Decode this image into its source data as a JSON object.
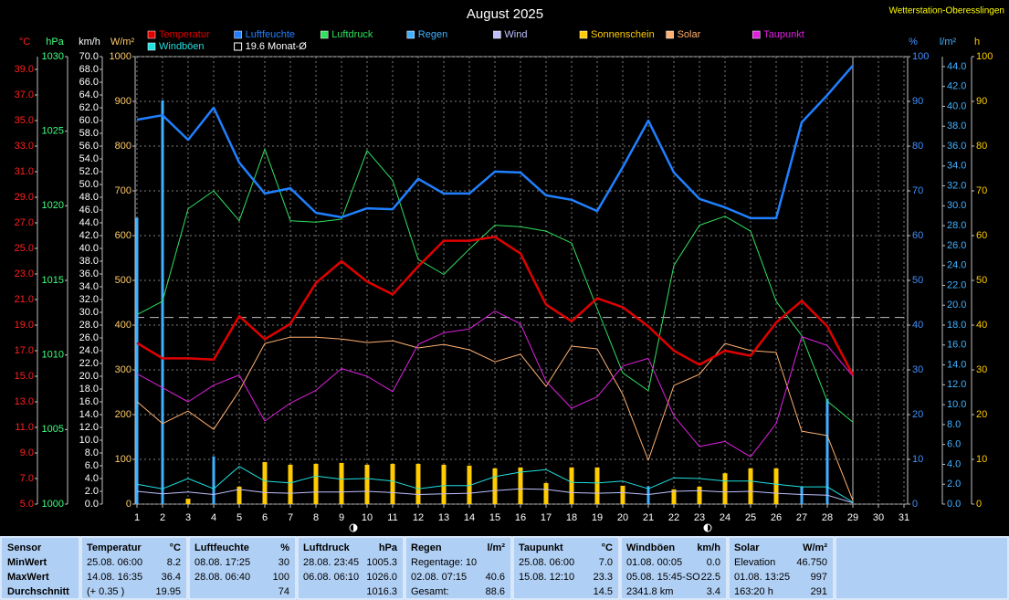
{
  "chart_data": {
    "type": "line",
    "title": "August 2025",
    "station": "Wetterstation-Oberesslingen",
    "xlim": [
      1,
      31
    ],
    "xticks": [
      1,
      2,
      3,
      4,
      5,
      6,
      7,
      8,
      9,
      10,
      11,
      12,
      13,
      14,
      15,
      16,
      17,
      18,
      19,
      20,
      21,
      22,
      23,
      24,
      25,
      26,
      27,
      28,
      29,
      30,
      31
    ],
    "x": [
      1,
      2,
      3,
      4,
      5,
      6,
      7,
      8,
      9,
      10,
      11,
      12,
      13,
      14,
      15,
      16,
      17,
      18,
      19,
      20,
      21,
      22,
      23,
      24,
      25,
      26,
      27,
      28,
      29
    ],
    "grid": true,
    "axes": [
      {
        "unit": "°C",
        "color": "#ff2020",
        "ylim": [
          5,
          40
        ],
        "yticks": [
          {
            "value": 5,
            "label": "5.0"
          },
          {
            "value": 7,
            "label": "7.0"
          },
          {
            "value": 9,
            "label": "9.0"
          },
          {
            "value": 11,
            "label": "11.0"
          },
          {
            "value": 13,
            "label": "13.0"
          },
          {
            "value": 15,
            "label": "15.0"
          },
          {
            "value": 17,
            "label": "17.0"
          },
          {
            "value": 19,
            "label": "19.0"
          },
          {
            "value": 21,
            "label": "21.0"
          },
          {
            "value": 23,
            "label": "23.0"
          },
          {
            "value": 25,
            "label": "25.0"
          },
          {
            "value": 27,
            "label": "27.0"
          },
          {
            "value": 29,
            "label": "29.0"
          },
          {
            "value": 31,
            "label": "31.0"
          },
          {
            "value": 33,
            "label": "33.0"
          },
          {
            "value": 35,
            "label": "35.0"
          },
          {
            "value": 37,
            "label": "37.0"
          },
          {
            "value": 39,
            "label": "39.0"
          }
        ]
      },
      {
        "unit": "hPa",
        "color": "#40ff80",
        "ylim": [
          1000,
          1030
        ],
        "yticks": [
          1000,
          1005,
          1010,
          1015,
          1020,
          1025,
          1030
        ]
      },
      {
        "unit": "km/h",
        "color": "#ffffff",
        "ylim": [
          0,
          70
        ],
        "yticks": [
          {
            "value": 0,
            "label": "0.0"
          },
          {
            "value": 2,
            "label": "2.0"
          },
          {
            "value": 4,
            "label": "4.0"
          },
          {
            "value": 6,
            "label": "6.0"
          },
          {
            "value": 8,
            "label": "8.0"
          },
          {
            "value": 10,
            "label": "10.0"
          },
          {
            "value": 12,
            "label": "12.0"
          },
          {
            "value": 14,
            "label": "14.0"
          },
          {
            "value": 16,
            "label": "16.0"
          },
          {
            "value": 18,
            "label": "18.0"
          },
          {
            "value": 20,
            "label": "20.0"
          },
          {
            "value": 22,
            "label": "22.0"
          },
          {
            "value": 24,
            "label": "24.0"
          },
          {
            "value": 26,
            "label": "26.0"
          },
          {
            "value": 28,
            "label": "28.0"
          },
          {
            "value": 30,
            "label": "30.0"
          },
          {
            "value": 32,
            "label": "32.0"
          },
          {
            "value": 34,
            "label": "34.0"
          },
          {
            "value": 36,
            "label": "36.0"
          },
          {
            "value": 38,
            "label": "38.0"
          },
          {
            "value": 40,
            "label": "40.0"
          },
          {
            "value": 42,
            "label": "42.0"
          },
          {
            "value": 44,
            "label": "44.0"
          },
          {
            "value": 46,
            "label": "46.0"
          },
          {
            "value": 48,
            "label": "48.0"
          },
          {
            "value": 50,
            "label": "50.0"
          },
          {
            "value": 52,
            "label": "52.0"
          },
          {
            "value": 54,
            "label": "54.0"
          },
          {
            "value": 56,
            "label": "56.0"
          },
          {
            "value": 58,
            "label": "58.0"
          },
          {
            "value": 60,
            "label": "60.0"
          },
          {
            "value": 62,
            "label": "62.0"
          },
          {
            "value": 64,
            "label": "64.0"
          },
          {
            "value": 66,
            "label": "66.0"
          },
          {
            "value": 68,
            "label": "68.0"
          },
          {
            "value": 70,
            "label": "70.0"
          }
        ]
      },
      {
        "unit": "W/m²",
        "color": "#ffcc66",
        "ylim": [
          0,
          1000
        ],
        "yticks": [
          0,
          100,
          200,
          300,
          400,
          500,
          600,
          700,
          800,
          900,
          1000
        ]
      },
      {
        "unit": "%",
        "color": "#4090ff",
        "ylim": [
          0,
          100
        ],
        "yticks": [
          0,
          10,
          20,
          30,
          40,
          50,
          60,
          70,
          80,
          90,
          100
        ]
      },
      {
        "unit": "l/m²",
        "color": "#40b0ff",
        "ylim": [
          0,
          45
        ],
        "yticks": [
          {
            "value": 0,
            "label": "0.0"
          },
          {
            "value": 2,
            "label": "2.0"
          },
          {
            "value": 4,
            "label": "4.0"
          },
          {
            "value": 6,
            "label": "6.0"
          },
          {
            "value": 8,
            "label": "8.0"
          },
          {
            "value": 10,
            "label": "10.0"
          },
          {
            "value": 12,
            "label": "12.0"
          },
          {
            "value": 14,
            "label": "14.0"
          },
          {
            "value": 16,
            "label": "16.0"
          },
          {
            "value": 18,
            "label": "18.0"
          },
          {
            "value": 20,
            "label": "20.0"
          },
          {
            "value": 22,
            "label": "22.0"
          },
          {
            "value": 24,
            "label": "24.0"
          },
          {
            "value": 26,
            "label": "26.0"
          },
          {
            "value": 28,
            "label": "28.0"
          },
          {
            "value": 30,
            "label": "30.0"
          },
          {
            "value": 32,
            "label": "32.0"
          },
          {
            "value": 34,
            "label": "34.0"
          },
          {
            "value": 36,
            "label": "36.0"
          },
          {
            "value": 38,
            "label": "38.0"
          },
          {
            "value": 40,
            "label": "40.0"
          },
          {
            "value": 42,
            "label": "42.0"
          },
          {
            "value": 44,
            "label": "44.0"
          }
        ]
      },
      {
        "unit": "h",
        "color": "#ffcc00",
        "ylim": [
          0,
          100
        ],
        "yticks": [
          0,
          10,
          20,
          30,
          40,
          50,
          60,
          70,
          80,
          90,
          100
        ]
      }
    ],
    "series": [
      {
        "name": "Temperatur",
        "color": "#e00000",
        "type": "line",
        "axis": 0,
        "line_width": 2.5,
        "values": [
          17.6,
          16.4,
          16.4,
          16.3,
          19.7,
          17.9,
          19.1,
          22.3,
          24.0,
          22.4,
          21.4,
          23.6,
          25.6,
          25.6,
          25.9,
          24.6,
          20.6,
          19.3,
          21.1,
          20.4,
          18.9,
          17.0,
          15.9,
          17.0,
          16.6,
          19.2,
          20.9,
          18.9,
          15.1
        ]
      },
      {
        "name": "Luftfeuchte",
        "color": "#2080ff",
        "type": "line",
        "axis": 4,
        "line_width": 2.5,
        "values": [
          85.9,
          86.9,
          81.4,
          88.6,
          76.3,
          69.4,
          70.6,
          65.1,
          64.1,
          66.1,
          65.9,
          72.7,
          69.4,
          69.4,
          74.3,
          74.1,
          69.0,
          68.0,
          65.5,
          75.3,
          85.7,
          74.1,
          68.2,
          66.3,
          63.9,
          63.9,
          85.3,
          91.4,
          98.0
        ]
      },
      {
        "name": "Luftdruck",
        "color": "#30e060",
        "type": "line",
        "axis": 1,
        "line_width": 1,
        "values": [
          1012.7,
          1013.6,
          1019.8,
          1021.0,
          1019.0,
          1023.8,
          1019.0,
          1018.9,
          1019.1,
          1023.7,
          1021.7,
          1016.4,
          1015.4,
          1017.1,
          1018.7,
          1018.6,
          1018.3,
          1017.5,
          1013.1,
          1008.8,
          1007.6,
          1016.0,
          1018.7,
          1019.3,
          1018.3,
          1013.6,
          1011.3,
          1006.9,
          1005.5
        ]
      },
      {
        "name": "Regen",
        "color": "#40b0ff",
        "type": "bar",
        "axis": 5,
        "line_width": 3,
        "values": [
          28.8,
          40.6,
          0,
          4.8,
          0,
          0,
          0,
          0,
          0,
          0,
          0,
          0,
          0,
          0,
          0,
          0,
          0,
          0,
          0,
          0,
          1.8,
          0,
          0,
          0,
          0,
          0,
          1.7,
          10.6,
          0
        ]
      },
      {
        "name": "Wind",
        "color": "#c0c0ff",
        "type": "line",
        "axis": 2,
        "line_width": 1,
        "values": [
          2.0,
          1.6,
          1.9,
          1.5,
          2.3,
          1.8,
          1.7,
          1.9,
          1.9,
          2.0,
          1.8,
          1.5,
          1.6,
          1.7,
          2.1,
          2.4,
          2.3,
          1.8,
          1.7,
          1.8,
          1.5,
          2.0,
          2.1,
          1.9,
          2.0,
          1.7,
          1.5,
          1.4,
          0.2
        ]
      },
      {
        "name": "Sonnenschein",
        "color": "#ffcc00",
        "type": "bar",
        "axis": 6,
        "line_width": 5,
        "values": [
          0,
          0,
          1.2,
          0,
          3.9,
          9.4,
          8.8,
          9.0,
          9.2,
          8.8,
          9.0,
          9.0,
          8.8,
          8.6,
          8.0,
          8.2,
          4.7,
          8.2,
          8.2,
          4.1,
          0,
          3.3,
          3.9,
          6.9,
          8.0,
          8.0,
          0,
          0,
          0
        ]
      },
      {
        "name": "Solar",
        "color": "#ffb070",
        "type": "line",
        "axis": 3,
        "line_width": 1,
        "values": [
          229,
          180,
          208,
          167,
          253,
          359,
          373,
          373,
          369,
          361,
          365,
          349,
          357,
          345,
          318,
          335,
          263,
          353,
          347,
          245,
          98,
          265,
          290,
          359,
          343,
          339,
          163,
          153,
          8
        ]
      },
      {
        "name": "Taupunkt",
        "color": "#e020e0",
        "type": "line",
        "axis": 0,
        "line_width": 1,
        "values": [
          15.2,
          14.1,
          13.0,
          14.3,
          15.1,
          11.5,
          12.9,
          13.9,
          15.6,
          15.0,
          13.8,
          17.5,
          18.4,
          18.7,
          20.1,
          19.1,
          14.6,
          12.5,
          13.4,
          15.8,
          16.4,
          11.9,
          9.5,
          9.9,
          8.7,
          11.3,
          18.1,
          17.4,
          15.0
        ]
      },
      {
        "name": "Windböen",
        "color": "#20e0e0",
        "type": "line",
        "axis": 2,
        "line_width": 1,
        "values": [
          3.1,
          2.4,
          4.0,
          2.4,
          5.9,
          3.6,
          3.3,
          4.4,
          3.9,
          4.0,
          3.6,
          2.4,
          2.9,
          2.9,
          4.3,
          5.0,
          5.4,
          3.4,
          3.3,
          3.6,
          2.4,
          4.1,
          4.0,
          3.6,
          3.6,
          3.1,
          2.7,
          2.7,
          0.3
        ]
      }
    ],
    "average": {
      "value": 19.6,
      "label": "19.6 Monat-Ø",
      "axis": 0
    },
    "summary": {
      "row_labels": [
        "Sensor",
        "MinWert",
        "MaxWert",
        "Durchschnitt"
      ],
      "columns": [
        {
          "name": "Temperatur",
          "unit": "°C",
          "rows": [
            {
              "l": "25.08. 06:00",
              "r": "8.2"
            },
            {
              "l": "14.08. 16:35",
              "r": "36.4"
            },
            {
              "l": "(+ 0.35 )",
              "r": "19.95"
            }
          ]
        },
        {
          "name": "Luftfeuchte",
          "unit": "%",
          "rows": [
            {
              "l": "08.08. 17:25",
              "r": "30"
            },
            {
              "l": "28.08. 06:40",
              "r": "100"
            },
            {
              "r": "74"
            }
          ]
        },
        {
          "name": "Luftdruck",
          "unit": "hPa",
          "rows": [
            {
              "l": "28.08. 23:45",
              "r": "1005.3"
            },
            {
              "l": "06.08. 06:10",
              "r": "1026.0"
            },
            {
              "r": "1016.3"
            }
          ]
        },
        {
          "name": "Regen",
          "unit": "l/m²",
          "rows": [
            {
              "l": "Regentage: 10"
            },
            {
              "l": "02.08. 07:15",
              "r": "40.6"
            },
            {
              "l": "Gesamt:",
              "r": "88.6"
            }
          ]
        },
        {
          "name": "Taupunkt",
          "unit": "°C",
          "rows": [
            {
              "l": "25.08. 06:00",
              "r": "7.0"
            },
            {
              "l": "15.08. 12:10",
              "r": "23.3"
            },
            {
              "r": "14.5"
            }
          ]
        },
        {
          "name": "Windböen",
          "unit": "km/h",
          "rows": [
            {
              "l": "01.08. 00:05",
              "r": "0.0"
            },
            {
              "l": "05.08. 15:45-SO",
              "r": "22.5"
            },
            {
              "l": "2341.8 km",
              "r": "3.4"
            }
          ]
        },
        {
          "name": "Solar",
          "unit": "W/m²",
          "rows": [
            {
              "l": "Elevation",
              "r": "46.750"
            },
            {
              "l": "01.08. 13:25",
              "r": "997"
            },
            {
              "l": "163:20 h",
              "r": "291"
            }
          ]
        }
      ]
    }
  }
}
